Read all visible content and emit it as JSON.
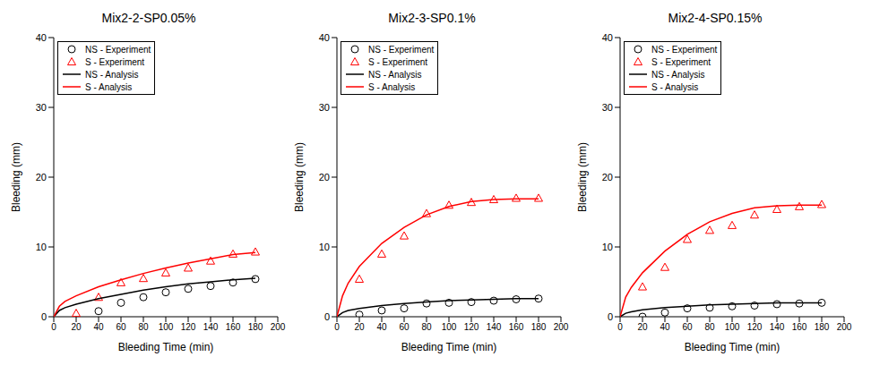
{
  "chart_data": [
    {
      "type": "scatter",
      "title": "Mix2-2-SP0.05%",
      "x_label": "Bleeding Time (min)",
      "y_label": "Bleeding (mm)",
      "xlim": [
        0,
        200
      ],
      "xticks": [
        0,
        20,
        40,
        60,
        80,
        100,
        120,
        140,
        160,
        180,
        200
      ],
      "ylim": [
        0,
        40
      ],
      "yticks": [
        0,
        10,
        20,
        30,
        40
      ],
      "grid": false,
      "legend": "upper left",
      "series": [
        {
          "name": "NS - Experiment",
          "type": "scatter",
          "marker": "circle",
          "color": "#000000",
          "x": [
            40,
            60,
            80,
            100,
            120,
            140,
            160,
            180
          ],
          "values": [
            0.8,
            2.0,
            2.8,
            3.5,
            4.0,
            4.4,
            4.9,
            5.4
          ]
        },
        {
          "name": "S - Experiment",
          "type": "scatter",
          "marker": "triangle",
          "color": "#ff0000",
          "x": [
            20,
            40,
            60,
            80,
            100,
            120,
            140,
            160,
            180
          ],
          "values": [
            0.5,
            2.8,
            4.9,
            5.5,
            6.3,
            7.0,
            8.0,
            9.0,
            9.3
          ]
        },
        {
          "name": "NS - Analysis",
          "type": "line",
          "color": "#000000",
          "x": [
            0,
            5,
            10,
            20,
            40,
            60,
            80,
            100,
            120,
            140,
            160,
            180
          ],
          "values": [
            0,
            0.9,
            1.3,
            1.8,
            2.6,
            3.2,
            3.8,
            4.3,
            4.7,
            5.0,
            5.3,
            5.5
          ]
        },
        {
          "name": "S - Analysis",
          "type": "line",
          "color": "#ff0000",
          "x": [
            0,
            5,
            10,
            20,
            40,
            60,
            80,
            100,
            120,
            140,
            160,
            180
          ],
          "values": [
            0,
            1.5,
            2.2,
            3.0,
            4.3,
            5.3,
            6.2,
            7.0,
            7.7,
            8.3,
            8.9,
            9.2
          ]
        }
      ]
    },
    {
      "type": "scatter",
      "title": "Mix2-3-SP0.1%",
      "x_label": "Bleeding Time (min)",
      "y_label": "Bleeding (mm)",
      "xlim": [
        0,
        200
      ],
      "xticks": [
        0,
        20,
        40,
        60,
        80,
        100,
        120,
        140,
        160,
        180,
        200
      ],
      "ylim": [
        0,
        40
      ],
      "yticks": [
        0,
        10,
        20,
        30,
        40
      ],
      "grid": false,
      "legend": "upper left",
      "series": [
        {
          "name": "NS - Experiment",
          "type": "scatter",
          "marker": "circle",
          "color": "#000000",
          "x": [
            20,
            40,
            60,
            80,
            100,
            120,
            140,
            160,
            180
          ],
          "values": [
            0.3,
            0.9,
            1.2,
            1.9,
            2.0,
            2.1,
            2.3,
            2.5,
            2.6
          ]
        },
        {
          "name": "S - Experiment",
          "type": "scatter",
          "marker": "triangle",
          "color": "#ff0000",
          "x": [
            20,
            40,
            60,
            80,
            100,
            120,
            140,
            160,
            180
          ],
          "values": [
            5.4,
            9.0,
            11.6,
            14.8,
            16.0,
            16.4,
            16.8,
            17.0,
            17.0
          ]
        },
        {
          "name": "NS - Analysis",
          "type": "line",
          "color": "#000000",
          "x": [
            0,
            5,
            10,
            20,
            40,
            60,
            80,
            100,
            120,
            140,
            160,
            180
          ],
          "values": [
            0,
            0.6,
            0.9,
            1.2,
            1.6,
            1.9,
            2.1,
            2.3,
            2.4,
            2.5,
            2.6,
            2.6
          ]
        },
        {
          "name": "S - Analysis",
          "type": "line",
          "color": "#ff0000",
          "x": [
            0,
            5,
            10,
            20,
            40,
            60,
            80,
            100,
            120,
            140,
            160,
            180
          ],
          "values": [
            0,
            3.0,
            4.8,
            7.2,
            10.5,
            12.8,
            14.6,
            15.8,
            16.5,
            16.8,
            16.9,
            16.9
          ]
        }
      ]
    },
    {
      "type": "scatter",
      "title": "Mix2-4-SP0.15%",
      "x_label": "Bleeding Time (min)",
      "y_label": "Bleeding (mm)",
      "xlim": [
        0,
        200
      ],
      "xticks": [
        0,
        20,
        40,
        60,
        80,
        100,
        120,
        140,
        160,
        180,
        200
      ],
      "ylim": [
        0,
        40
      ],
      "yticks": [
        0,
        10,
        20,
        30,
        40
      ],
      "grid": false,
      "legend": "upper left",
      "series": [
        {
          "name": "NS - Experiment",
          "type": "scatter",
          "marker": "circle",
          "color": "#000000",
          "x": [
            20,
            40,
            60,
            80,
            100,
            120,
            140,
            160,
            180
          ],
          "values": [
            0.0,
            0.6,
            1.2,
            1.3,
            1.5,
            1.6,
            1.8,
            1.9,
            2.0
          ]
        },
        {
          "name": "S - Experiment",
          "type": "scatter",
          "marker": "triangle",
          "color": "#ff0000",
          "x": [
            20,
            40,
            60,
            80,
            100,
            120,
            140,
            160,
            180
          ],
          "values": [
            4.3,
            7.1,
            11.1,
            12.4,
            13.1,
            14.6,
            15.4,
            15.8,
            16.1
          ]
        },
        {
          "name": "NS - Analysis",
          "type": "line",
          "color": "#000000",
          "x": [
            0,
            5,
            10,
            20,
            40,
            60,
            80,
            100,
            120,
            140,
            160,
            180
          ],
          "values": [
            0,
            0.5,
            0.7,
            1.0,
            1.3,
            1.5,
            1.7,
            1.8,
            1.9,
            2.0,
            2.0,
            2.0
          ]
        },
        {
          "name": "S - Analysis",
          "type": "line",
          "color": "#ff0000",
          "x": [
            0,
            5,
            10,
            20,
            40,
            60,
            80,
            100,
            120,
            140,
            160,
            180
          ],
          "values": [
            0,
            2.8,
            4.2,
            6.3,
            9.4,
            11.8,
            13.6,
            14.8,
            15.6,
            15.9,
            16.0,
            16.0
          ]
        }
      ]
    }
  ]
}
